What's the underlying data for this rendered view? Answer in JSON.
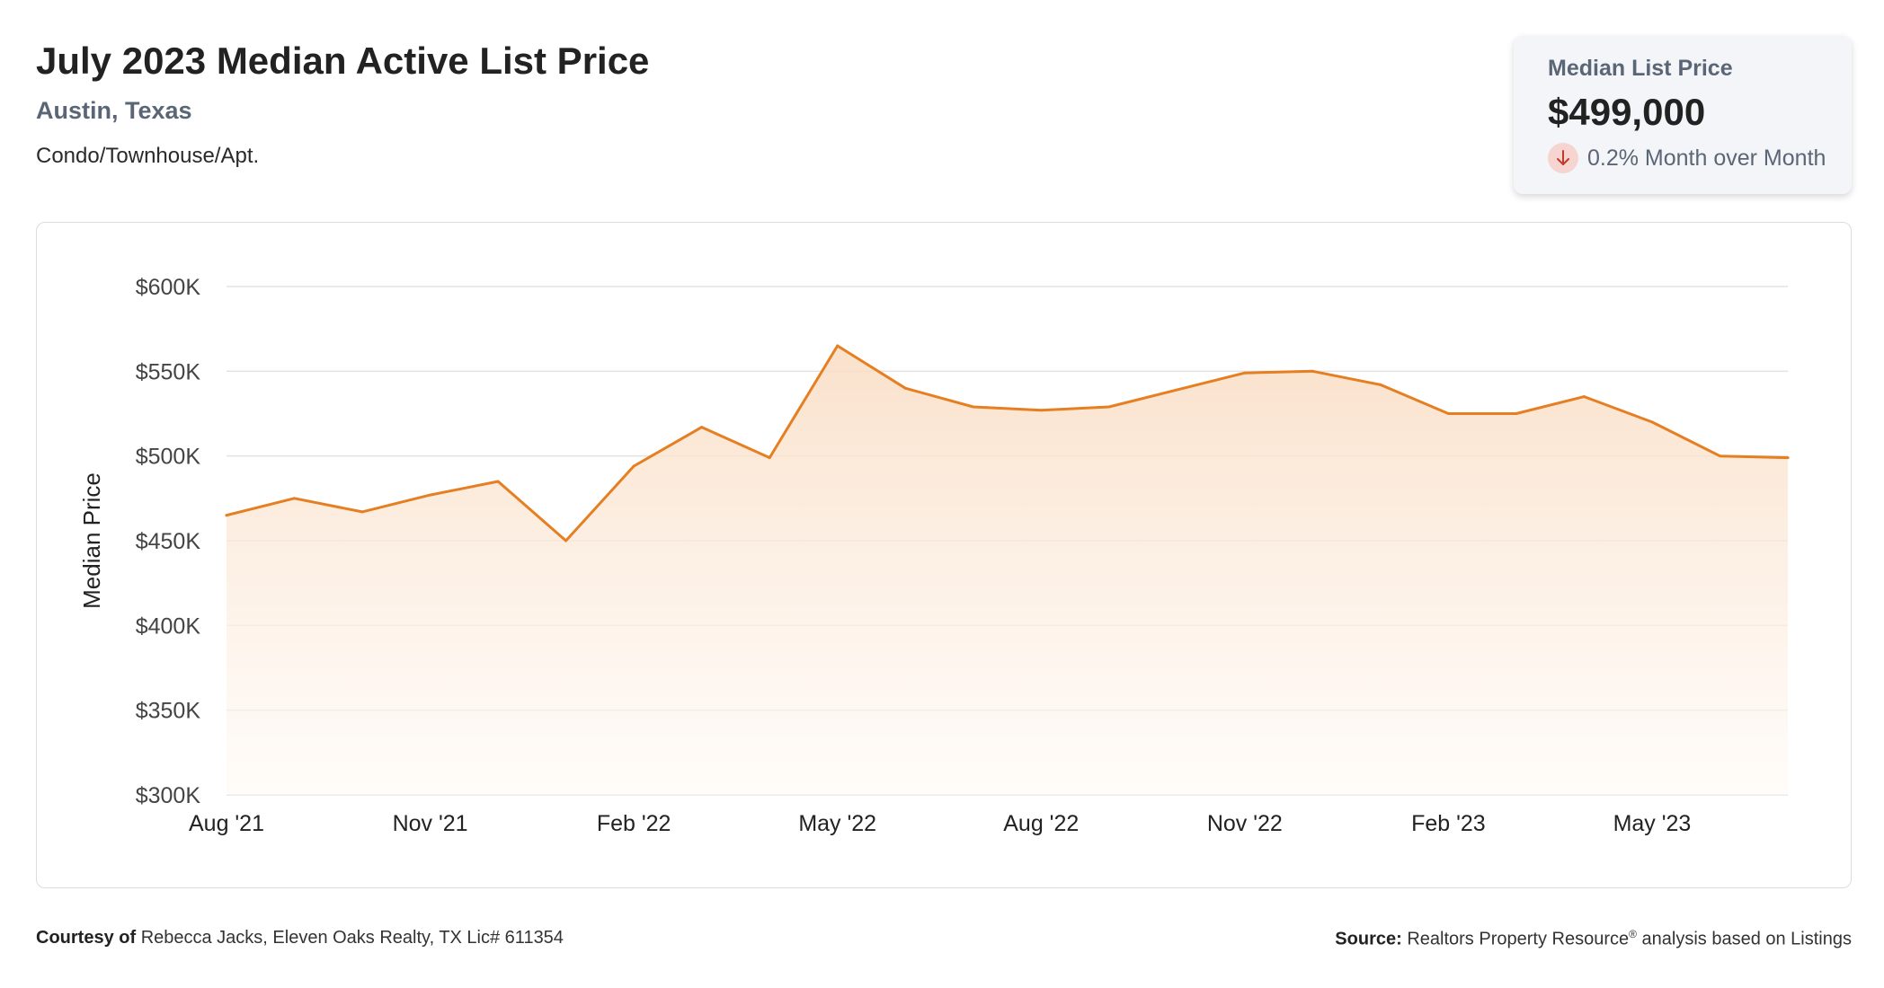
{
  "header": {
    "title": "July 2023 Median Active List Price",
    "location": "Austin, Texas",
    "property_type": "Condo/Townhouse/Apt."
  },
  "kpi": {
    "label": "Median List Price",
    "value": "$499,000",
    "change": "0.2% Month over Month",
    "direction": "down",
    "icon": "arrow-down-icon"
  },
  "footer": {
    "courtesy_label": "Courtesy of",
    "courtesy_text": "Rebecca Jacks, Eleven Oaks Realty, TX Lic# 611354",
    "source_label": "Source:",
    "source_name": "Realtors Property Resource",
    "source_mark": "®",
    "source_text": "analysis based on Listings"
  },
  "colors": {
    "line": "#e67e22",
    "fill_top": "#f9dcc2",
    "fill_bottom": "#fffaf5",
    "grid": "#e3e3e3",
    "axis_text": "#444444",
    "down_icon": "#c0392b",
    "down_bg": "#f6d5d0"
  },
  "chart_data": {
    "type": "area",
    "title": "",
    "xlabel": "",
    "ylabel": "Median Price",
    "x": [
      "Aug '21",
      "Sep '21",
      "Oct '21",
      "Nov '21",
      "Dec '21",
      "Jan '22",
      "Feb '22",
      "Mar '22",
      "Apr '22",
      "May '22",
      "Jun '22",
      "Jul '22",
      "Aug '22",
      "Sep '22",
      "Oct '22",
      "Nov '22",
      "Dec '22",
      "Jan '23",
      "Feb '23",
      "Mar '23",
      "Apr '23",
      "May '23",
      "Jun '23",
      "Jul '23"
    ],
    "x_tick_labels": [
      "Aug '21",
      "Nov '21",
      "Feb '22",
      "May '22",
      "Aug '22",
      "Nov '22",
      "Feb '23",
      "May '23"
    ],
    "x_tick_indices": [
      0,
      3,
      6,
      9,
      12,
      15,
      18,
      21
    ],
    "series": [
      {
        "values": [
          465000,
          475000,
          467000,
          477000,
          485000,
          450000,
          494000,
          517000,
          499000,
          565000,
          540000,
          529000,
          527000,
          529000,
          539000,
          549000,
          550000,
          542000,
          525000,
          525000,
          535000,
          520000,
          500000,
          499000
        ]
      }
    ],
    "ylim": [
      300000,
      600000
    ],
    "y_ticks": [
      300000,
      350000,
      400000,
      450000,
      500000,
      550000,
      600000
    ],
    "y_tick_labels": [
      "$300K",
      "$350K",
      "$400K",
      "$450K",
      "$500K",
      "$550K",
      "$600K"
    ],
    "grid": true,
    "legend": "none"
  }
}
